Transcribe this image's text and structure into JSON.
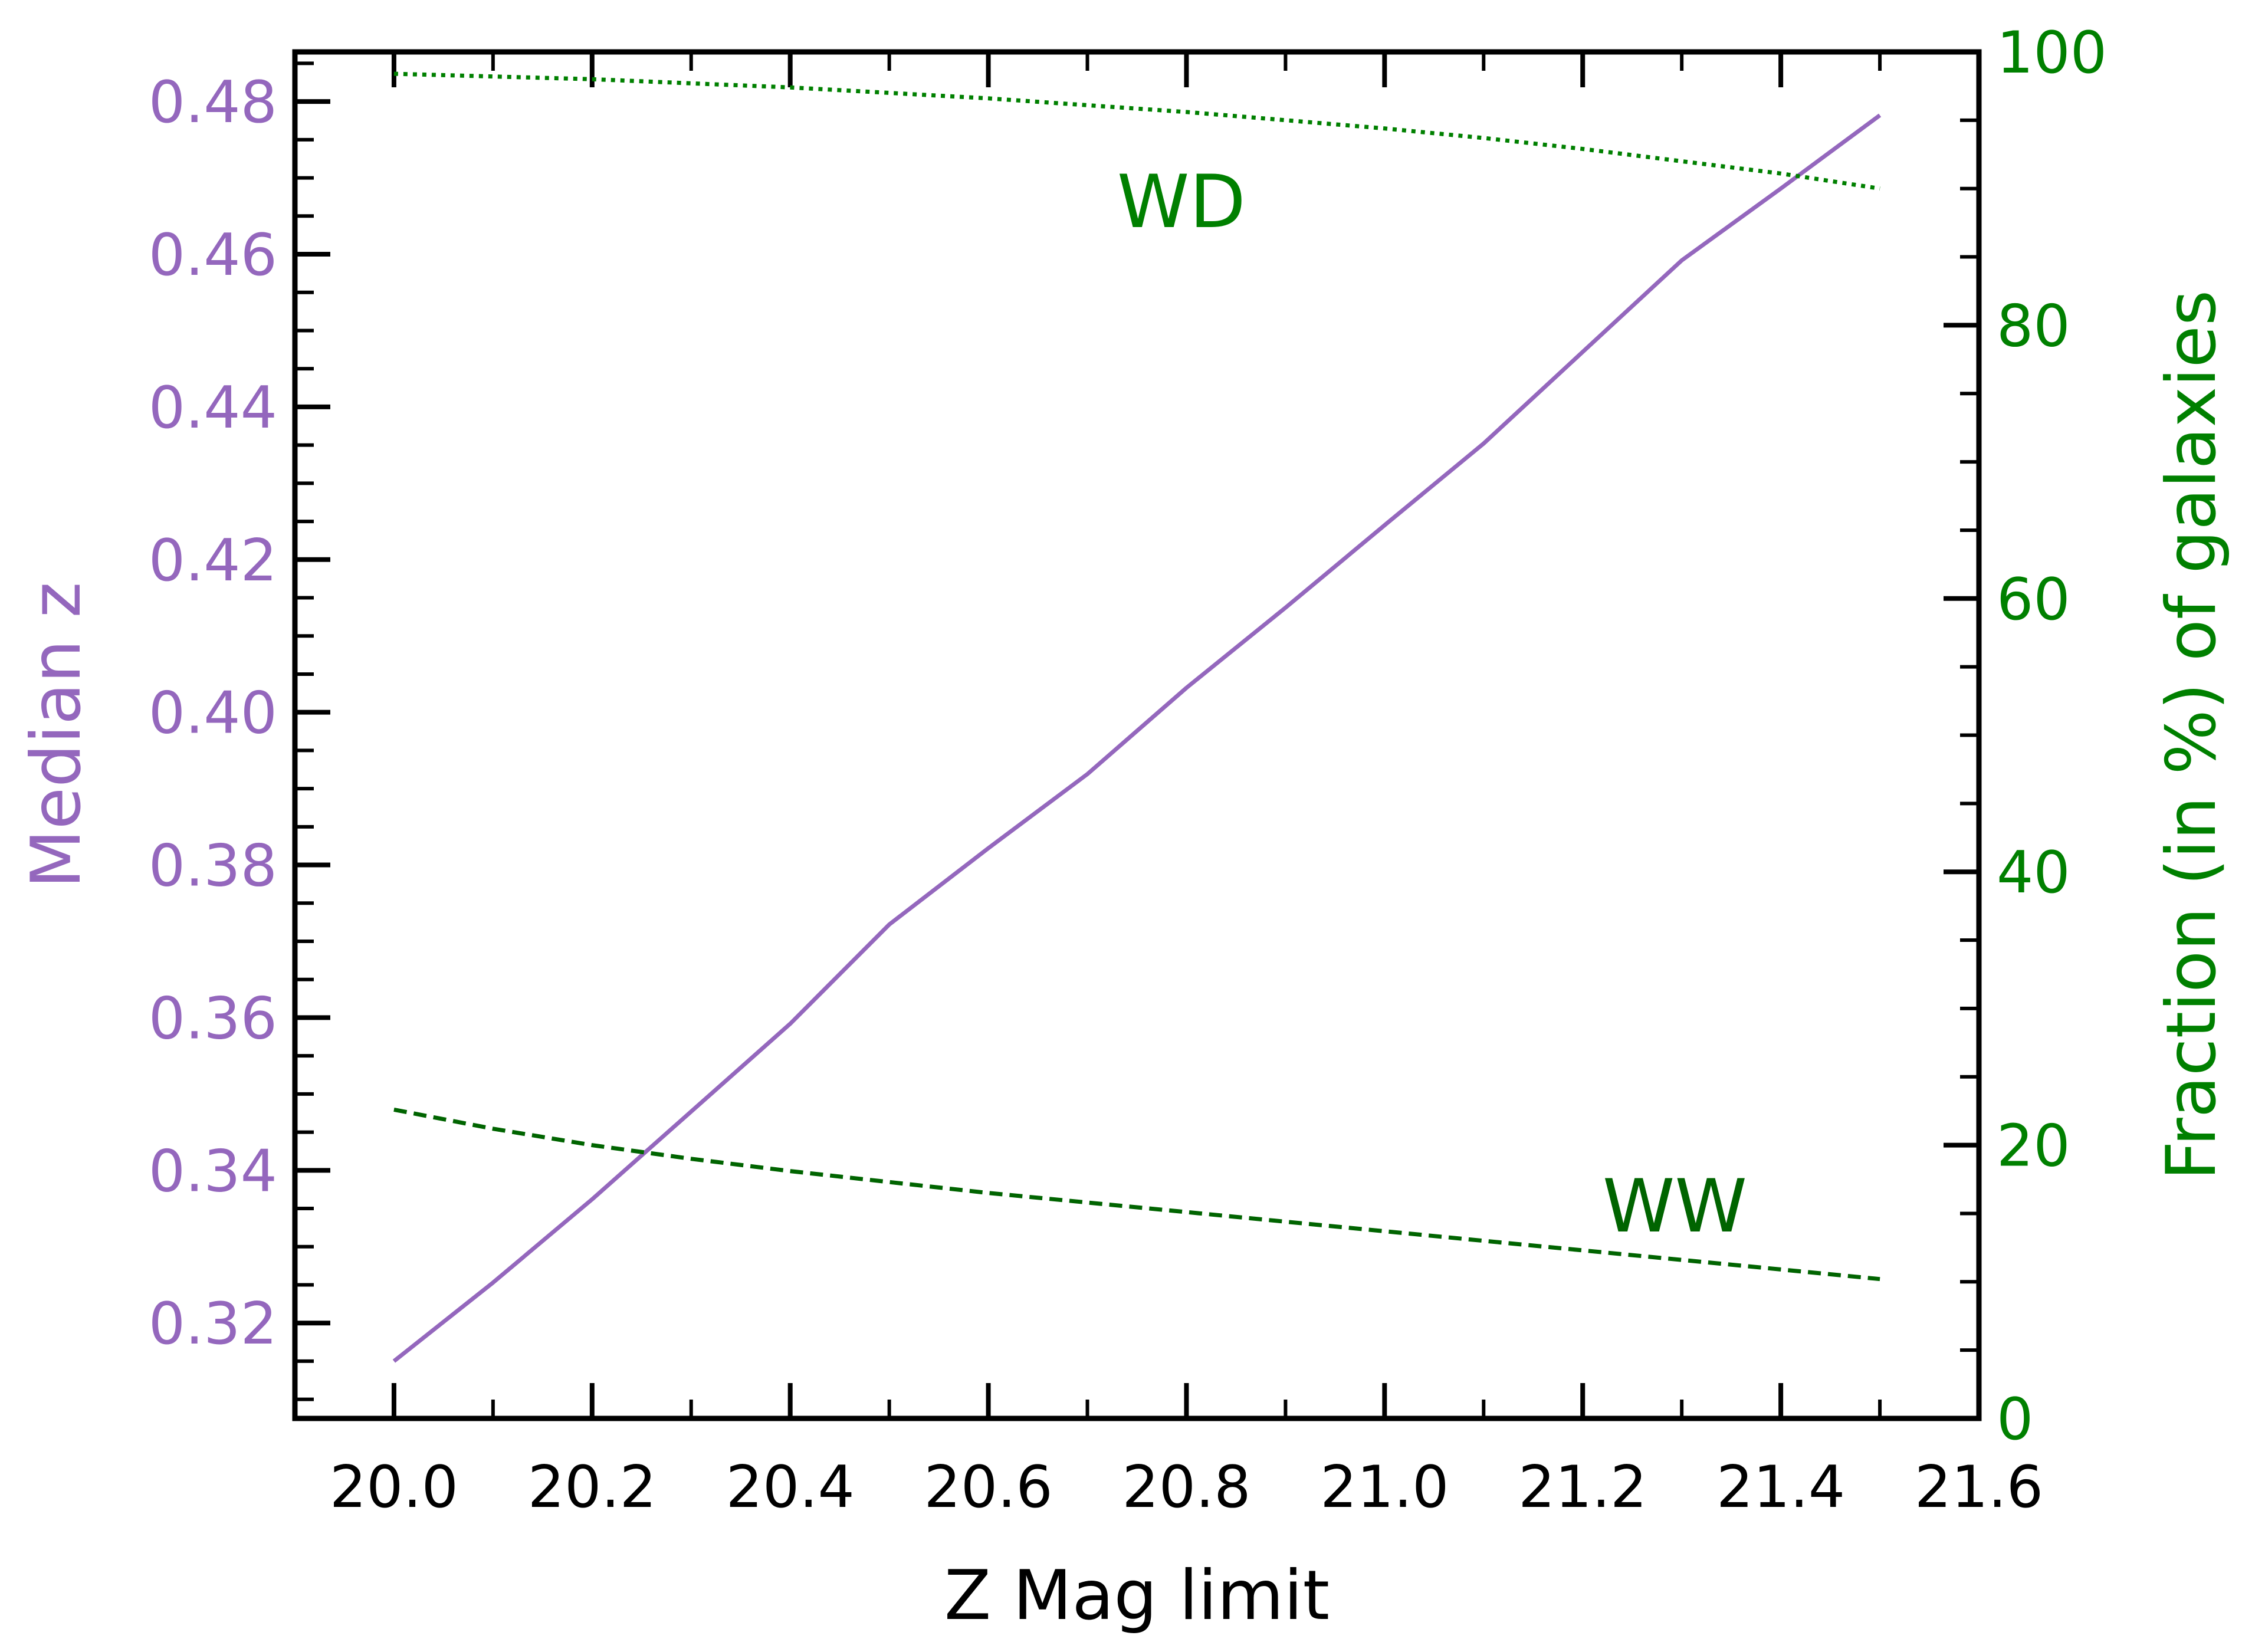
{
  "chart_data": {
    "type": "line",
    "title": "",
    "xlabel": "Z Mag limit",
    "ylabel_left": "Median z",
    "ylabel_right": "Fraction (in %) of galaxies",
    "xlim": [
      19.9,
      21.6
    ],
    "ylim_left": [
      0.3075,
      0.4865
    ],
    "ylim_right": [
      0,
      100
    ],
    "x_ticks": [
      "20.0",
      "20.2",
      "20.4",
      "20.6",
      "20.8",
      "21.0",
      "21.2",
      "21.4",
      "21.6"
    ],
    "y_ticks_left": [
      "0.32",
      "0.34",
      "0.36",
      "0.38",
      "0.40",
      "0.42",
      "0.44",
      "0.46",
      "0.48"
    ],
    "y_ticks_right": [
      "0",
      "20",
      "40",
      "60",
      "80",
      "100"
    ],
    "colors": {
      "median": "#9467bd",
      "wd": "#008000",
      "ww": "#006400",
      "right_axis": "#008000",
      "axis": "#000000"
    },
    "series": [
      {
        "name": "Median z",
        "axis": "left",
        "style": "solid",
        "x": [
          20.0,
          20.1,
          20.2,
          20.3,
          20.4,
          20.5,
          20.6,
          20.7,
          20.8,
          20.9,
          21.0,
          21.1,
          21.2,
          21.3,
          21.4,
          21.5
        ],
        "y": [
          0.315,
          0.3253,
          0.3362,
          0.3477,
          0.3592,
          0.3722,
          0.3822,
          0.3919,
          0.4032,
          0.4137,
          0.4245,
          0.4352,
          0.4472,
          0.4592,
          0.4686,
          0.4782
        ]
      },
      {
        "name": "WD",
        "axis": "right",
        "style": "dotted",
        "x": [
          20.0,
          20.1,
          20.2,
          20.3,
          20.4,
          20.5,
          20.6,
          20.7,
          20.8,
          20.9,
          21.0,
          21.1,
          21.2,
          21.3,
          21.4,
          21.5
        ],
        "y": [
          98.4,
          98.2,
          98.0,
          97.7,
          97.4,
          97.0,
          96.6,
          96.1,
          95.6,
          95.0,
          94.4,
          93.7,
          92.9,
          92.0,
          91.1,
          90.0
        ]
      },
      {
        "name": "WW",
        "axis": "right",
        "style": "dashed",
        "x": [
          20.0,
          20.1,
          20.2,
          20.3,
          20.4,
          20.5,
          20.6,
          20.7,
          20.8,
          20.9,
          21.0,
          21.1,
          21.2,
          21.3,
          21.4,
          21.5
        ],
        "y": [
          22.6,
          21.2,
          20.0,
          19.0,
          18.1,
          17.3,
          16.5,
          15.8,
          15.1,
          14.4,
          13.7,
          13.0,
          12.3,
          11.6,
          10.9,
          10.2
        ]
      }
    ],
    "annotations": [
      {
        "text": "WD",
        "x": 20.73,
        "y_right": 89,
        "color": "#008000"
      },
      {
        "text": "WW",
        "x": 21.22,
        "y_right": 15.5,
        "color": "#006400"
      }
    ]
  }
}
